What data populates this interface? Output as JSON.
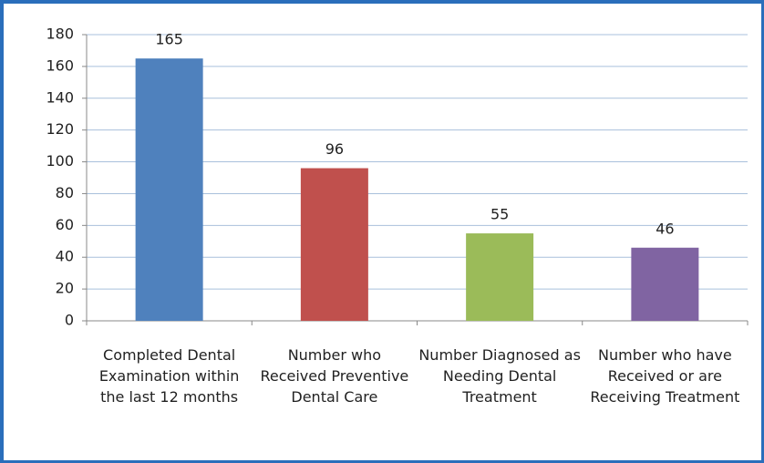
{
  "chart_data": {
    "type": "bar",
    "categories": [
      "Completed Dental Examination within the last 12 months",
      "Number who Received Preventive Dental Care",
      "Number Diagnosed as Needing Dental Treatment",
      "Number who have Received or are Receiving Treatment"
    ],
    "values": [
      165,
      96,
      55,
      46
    ],
    "colors": [
      "#4f81bd",
      "#c0504d",
      "#9bbb59",
      "#8064a2"
    ],
    "ylim": [
      0,
      180
    ],
    "yticks": [
      0,
      20,
      40,
      60,
      80,
      100,
      120,
      140,
      160,
      180
    ],
    "grid": true
  }
}
